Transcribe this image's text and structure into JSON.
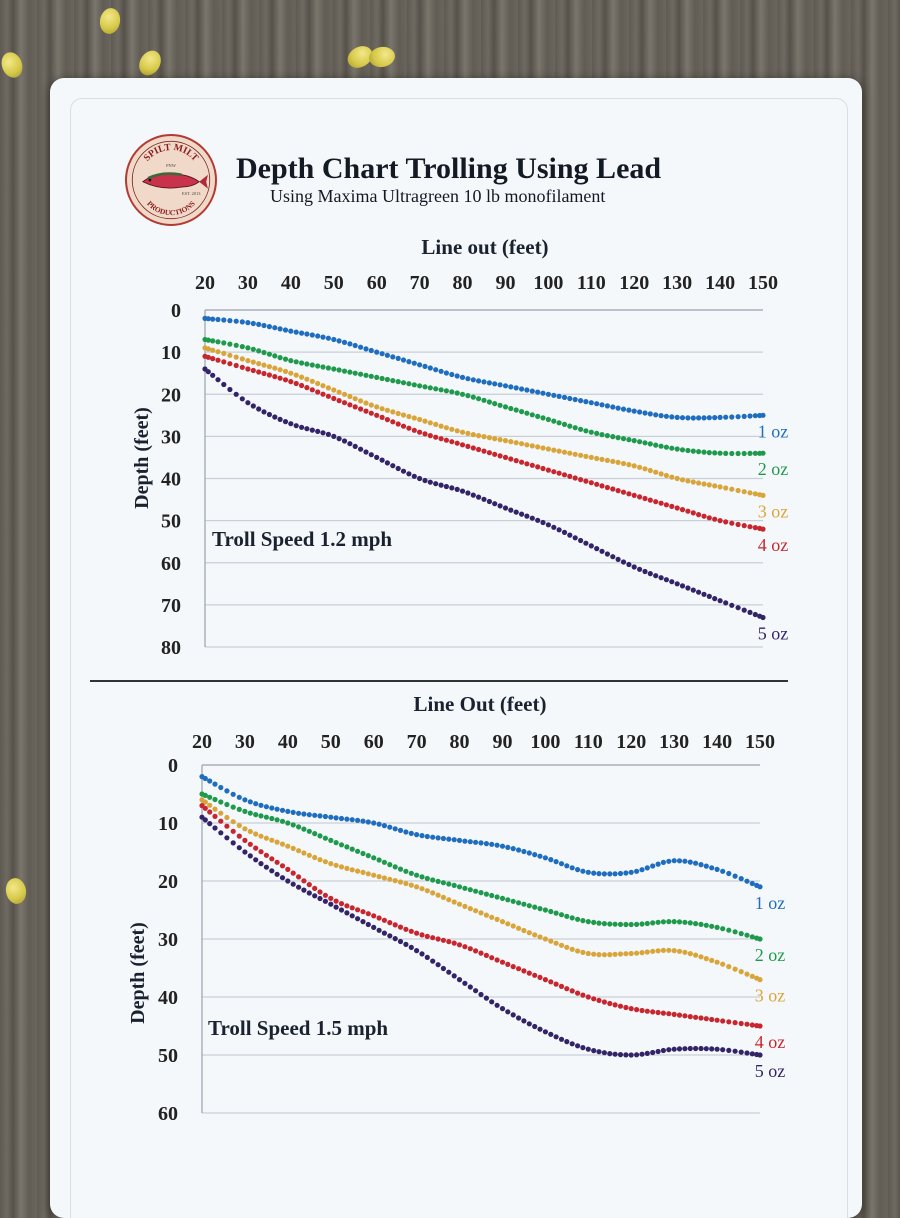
{
  "header": {
    "title": "Depth Chart Trolling Using Lead",
    "subtitle": "Using Maxima Ultragreen 10 lb monofilament"
  },
  "logo": {
    "top_text": "SPILT MILT",
    "bottom_text": "PRODUCTIONS",
    "left_small": "EST. 2013",
    "right_small": "PNW"
  },
  "colors": {
    "1 oz": "#1f6dbe",
    "2 oz": "#1f9a4c",
    "3 oz": "#d9a53a",
    "4 oz": "#c8262e",
    "5 oz": "#332468",
    "axis": "#222222",
    "grid": "#c9cfd8"
  },
  "chart_data": [
    {
      "type": "line",
      "title": "Line out (feet)",
      "xlabel": "Line out (feet)",
      "ylabel": "Depth (feet)",
      "annotation": "Troll Speed 1.2 mph",
      "x_ticks": [
        20,
        30,
        40,
        50,
        60,
        70,
        80,
        90,
        100,
        110,
        120,
        130,
        140,
        150
      ],
      "y_ticks": [
        0,
        10,
        20,
        30,
        40,
        50,
        60,
        70,
        80
      ],
      "xlim": [
        20,
        150
      ],
      "ylim": [
        0,
        80
      ],
      "y_inverted": true,
      "x_axis_position": "top",
      "grid": true,
      "series": [
        {
          "name": "1 oz",
          "x": [
            20,
            30,
            40,
            50,
            60,
            70,
            80,
            90,
            100,
            110,
            120,
            130,
            140,
            150
          ],
          "y": [
            2,
            3,
            5,
            7,
            10,
            13,
            16,
            18,
            20,
            22,
            24,
            25.5,
            25.5,
            25
          ]
        },
        {
          "name": "2 oz",
          "x": [
            20,
            30,
            40,
            50,
            60,
            70,
            80,
            90,
            100,
            110,
            120,
            130,
            140,
            150
          ],
          "y": [
            7,
            9,
            12,
            14,
            16,
            18,
            20,
            23,
            26,
            29,
            31,
            33,
            34,
            34
          ]
        },
        {
          "name": "3 oz",
          "x": [
            20,
            30,
            40,
            50,
            60,
            70,
            80,
            90,
            100,
            110,
            120,
            130,
            140,
            150
          ],
          "y": [
            9,
            12,
            15,
            19,
            23,
            26,
            29,
            31,
            33,
            35,
            37,
            40,
            42,
            44
          ]
        },
        {
          "name": "4 oz",
          "x": [
            20,
            30,
            40,
            50,
            60,
            70,
            80,
            90,
            100,
            110,
            120,
            130,
            140,
            150
          ],
          "y": [
            11,
            14,
            17,
            21,
            25,
            29,
            32,
            35,
            38,
            41,
            44,
            47,
            50,
            52
          ]
        },
        {
          "name": "5 oz",
          "x": [
            20,
            30,
            40,
            50,
            60,
            70,
            80,
            90,
            100,
            110,
            120,
            130,
            140,
            150
          ],
          "y": [
            14,
            22,
            27,
            30,
            35,
            40,
            43,
            47,
            51,
            56,
            61,
            65,
            69,
            73
          ]
        }
      ]
    },
    {
      "type": "line",
      "title": "Line Out (feet)",
      "xlabel": "Line Out (feet)",
      "ylabel": "Depth (feet)",
      "annotation": "Troll Speed 1.5 mph",
      "x_ticks": [
        20,
        30,
        40,
        50,
        60,
        70,
        80,
        90,
        100,
        110,
        120,
        130,
        140,
        150
      ],
      "y_ticks": [
        0,
        10,
        20,
        30,
        40,
        50,
        60
      ],
      "xlim": [
        20,
        150
      ],
      "ylim": [
        0,
        60
      ],
      "y_inverted": true,
      "x_axis_position": "top",
      "grid": true,
      "series": [
        {
          "name": "1 oz",
          "x": [
            20,
            30,
            40,
            50,
            60,
            70,
            80,
            90,
            100,
            110,
            120,
            130,
            140,
            150
          ],
          "y": [
            2,
            6,
            8,
            9,
            10,
            12,
            13,
            14,
            16,
            18.5,
            18.5,
            16.5,
            18,
            21
          ]
        },
        {
          "name": "2 oz",
          "x": [
            20,
            30,
            40,
            50,
            60,
            70,
            80,
            90,
            100,
            110,
            120,
            130,
            140,
            150
          ],
          "y": [
            5,
            8,
            10,
            13,
            16,
            19,
            21,
            23,
            25,
            27,
            27.5,
            27,
            28,
            30
          ]
        },
        {
          "name": "3 oz",
          "x": [
            20,
            30,
            40,
            50,
            60,
            70,
            80,
            90,
            100,
            110,
            120,
            130,
            140,
            150
          ],
          "y": [
            6,
            11,
            14,
            17,
            19,
            21,
            24,
            27,
            30,
            32.5,
            32.5,
            32,
            34,
            37
          ]
        },
        {
          "name": "4 oz",
          "x": [
            20,
            30,
            40,
            50,
            60,
            70,
            80,
            90,
            100,
            110,
            120,
            130,
            140,
            150
          ],
          "y": [
            7,
            13,
            18,
            23,
            26,
            29,
            31,
            34,
            37,
            40,
            42,
            43,
            44,
            45
          ]
        },
        {
          "name": "5 oz",
          "x": [
            20,
            30,
            40,
            50,
            60,
            70,
            80,
            90,
            100,
            110,
            120,
            130,
            140,
            150
          ],
          "y": [
            9,
            15,
            20,
            24,
            28,
            32,
            37,
            42,
            46,
            49,
            50,
            49,
            49,
            50
          ]
        }
      ]
    }
  ]
}
